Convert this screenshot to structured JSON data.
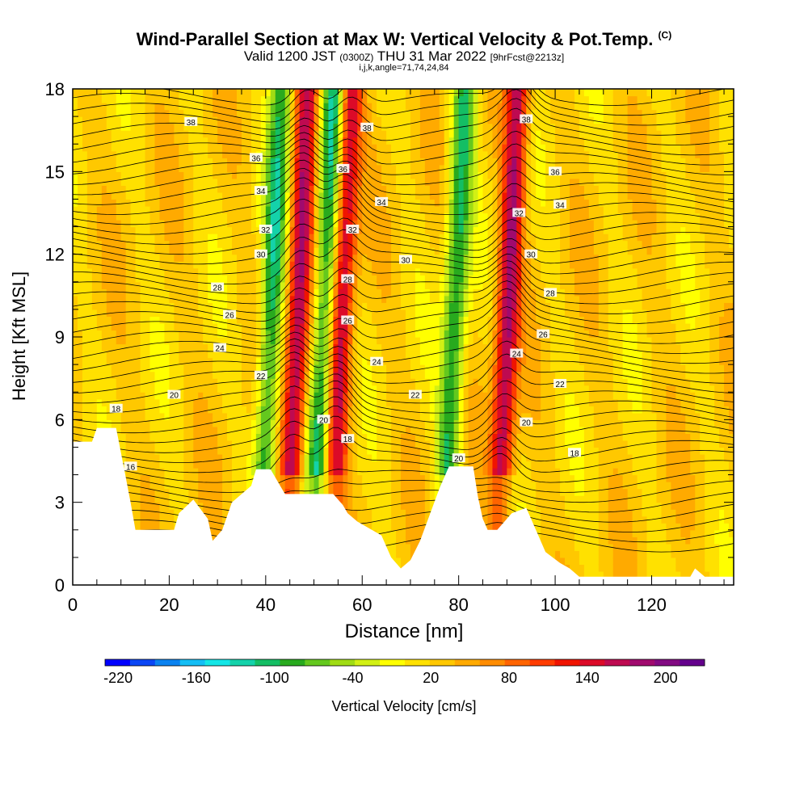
{
  "title": "Wind-Parallel Section at Max W: Vertical Velocity & Pot.Temp.",
  "copyright": "(C)",
  "subtitle_main_a": "Valid 1200 JST",
  "subtitle_small_a": "(0300Z)",
  "subtitle_main_b": "THU 31 Mar 2022",
  "subtitle_small_b": "[9hrFcst@2213z]",
  "subtitle2": "i,j,k,angle=71,74,24,84",
  "chart_data": {
    "type": "heatmap",
    "title": "Wind-Parallel Section at Max W: Vertical Velocity & Pot.Temp.",
    "xlabel": "Distance [nm]",
    "ylabel": "Height [Kft MSL]",
    "xlim": [
      0,
      137
    ],
    "ylim": [
      0,
      18
    ],
    "x_ticks": [
      0,
      20,
      40,
      60,
      80,
      100,
      120
    ],
    "y_ticks": [
      0,
      3,
      6,
      9,
      12,
      15,
      18
    ],
    "colorbar": {
      "label": "Vertical Velocity [cm/s]",
      "range": [
        -230,
        230
      ],
      "ticks": [
        -220,
        -160,
        -100,
        -40,
        20,
        80,
        140,
        200
      ],
      "colors": [
        "#0000ff",
        "#0a46f5",
        "#0a82f0",
        "#14bef5",
        "#14e6e6",
        "#14d2aa",
        "#14be64",
        "#28aa1e",
        "#64c81e",
        "#a0dc14",
        "#d2f014",
        "#ffff00",
        "#ffe100",
        "#ffc800",
        "#ffaa00",
        "#ff8c00",
        "#ff6400",
        "#ff3c00",
        "#f01400",
        "#dc0a28",
        "#be0a50",
        "#a00a6e",
        "#820a82",
        "#64008c"
      ]
    },
    "updrafts": [
      {
        "x": 46.5,
        "w": 150
      },
      {
        "x": 55.5,
        "w": 140
      },
      {
        "x": 90,
        "w": 150
      }
    ],
    "downdrafts": [
      {
        "x": 41,
        "w": -120
      },
      {
        "x": 52,
        "w": -130
      },
      {
        "x": 79,
        "w": -120
      }
    ],
    "theta_contour_labels": [
      {
        "x": 24.5,
        "y": 16.8,
        "t": "38"
      },
      {
        "x": 61,
        "y": 16.6,
        "t": "38"
      },
      {
        "x": 94,
        "y": 16.9,
        "t": "38"
      },
      {
        "x": 38,
        "y": 15.5,
        "t": "36"
      },
      {
        "x": 56,
        "y": 15.1,
        "t": "36"
      },
      {
        "x": 100,
        "y": 15.0,
        "t": "36"
      },
      {
        "x": 39,
        "y": 14.3,
        "t": "34"
      },
      {
        "x": 64,
        "y": 13.9,
        "t": "34"
      },
      {
        "x": 101,
        "y": 13.8,
        "t": "34"
      },
      {
        "x": 40,
        "y": 12.9,
        "t": "32"
      },
      {
        "x": 58,
        "y": 12.9,
        "t": "32"
      },
      {
        "x": 92.5,
        "y": 13.5,
        "t": "32"
      },
      {
        "x": 39,
        "y": 12.0,
        "t": "30"
      },
      {
        "x": 69,
        "y": 11.8,
        "t": "30"
      },
      {
        "x": 95,
        "y": 12.0,
        "t": "30"
      },
      {
        "x": 30,
        "y": 10.8,
        "t": "28"
      },
      {
        "x": 57,
        "y": 11.1,
        "t": "28"
      },
      {
        "x": 99,
        "y": 10.6,
        "t": "28"
      },
      {
        "x": 32.5,
        "y": 9.8,
        "t": "26"
      },
      {
        "x": 57,
        "y": 9.6,
        "t": "26"
      },
      {
        "x": 97.5,
        "y": 9.1,
        "t": "26"
      },
      {
        "x": 30.5,
        "y": 8.6,
        "t": "24"
      },
      {
        "x": 63,
        "y": 8.1,
        "t": "24"
      },
      {
        "x": 92,
        "y": 8.4,
        "t": "24"
      },
      {
        "x": 39,
        "y": 7.6,
        "t": "22"
      },
      {
        "x": 71,
        "y": 6.9,
        "t": "22"
      },
      {
        "x": 101,
        "y": 7.3,
        "t": "22"
      },
      {
        "x": 21,
        "y": 6.9,
        "t": "20"
      },
      {
        "x": 52,
        "y": 6.0,
        "t": "20"
      },
      {
        "x": 94,
        "y": 5.9,
        "t": "20"
      },
      {
        "x": 80,
        "y": 4.6,
        "t": "20"
      },
      {
        "x": 9,
        "y": 6.4,
        "t": "18"
      },
      {
        "x": 57,
        "y": 5.3,
        "t": "18"
      },
      {
        "x": 104,
        "y": 4.8,
        "t": "18"
      },
      {
        "x": 12,
        "y": 4.3,
        "t": "16"
      }
    ]
  }
}
